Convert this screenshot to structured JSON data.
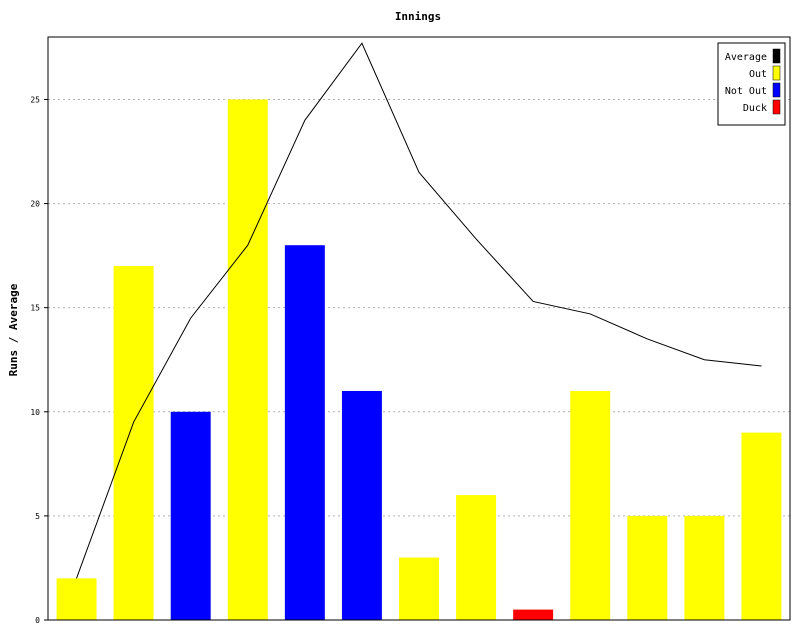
{
  "chart_data": {
    "type": "bar",
    "title": "Innings",
    "ylabel": "Runs / Average",
    "xlabel": "",
    "ylim": [
      0,
      28
    ],
    "yticks": [
      0,
      5,
      10,
      15,
      20,
      25
    ],
    "grid": true,
    "legend_position": "top-right",
    "legend": [
      {
        "label": "Average",
        "color": "#000000"
      },
      {
        "label": "Out",
        "color": "#ffff00"
      },
      {
        "label": "Not Out",
        "color": "#0000ff"
      },
      {
        "label": "Duck",
        "color": "#ff0000"
      }
    ],
    "bars": [
      {
        "value": 2,
        "status": "Out"
      },
      {
        "value": 17,
        "status": "Out"
      },
      {
        "value": 10,
        "status": "Not Out"
      },
      {
        "value": 25,
        "status": "Out"
      },
      {
        "value": 18,
        "status": "Not Out"
      },
      {
        "value": 11,
        "status": "Not Out"
      },
      {
        "value": 3,
        "status": "Out"
      },
      {
        "value": 6,
        "status": "Out"
      },
      {
        "value": 0.5,
        "status": "Duck"
      },
      {
        "value": 11,
        "status": "Out"
      },
      {
        "value": 5,
        "status": "Out"
      },
      {
        "value": 5,
        "status": "Out"
      },
      {
        "value": 9,
        "status": "Out"
      }
    ],
    "average_line": {
      "name": "Average",
      "values": [
        2,
        9.5,
        14.5,
        18,
        24,
        27.7,
        21.5,
        18.3,
        15.3,
        14.7,
        13.5,
        12.5,
        12.2
      ]
    }
  }
}
